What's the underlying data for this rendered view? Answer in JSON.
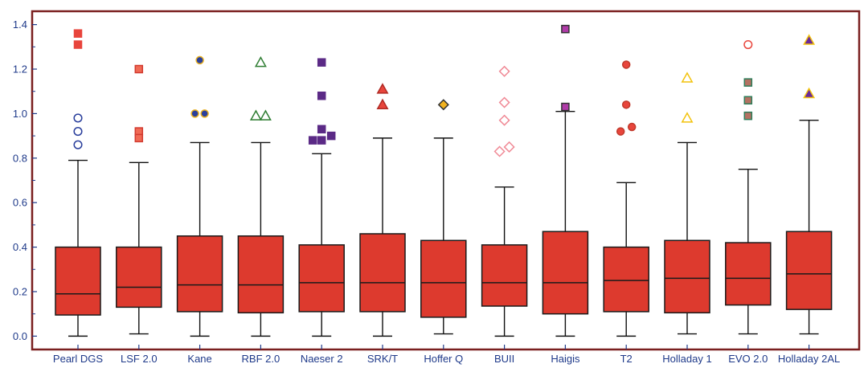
{
  "chart_data": {
    "type": "boxplot",
    "title": "",
    "xlabel": "",
    "ylabel": "",
    "ylim": [
      -0.06,
      1.46
    ],
    "yticks": [
      0.0,
      0.2,
      0.4,
      0.6,
      0.8,
      1.0,
      1.2,
      1.4
    ],
    "ytick_labels": [
      "0.0",
      "0.2",
      "0.4",
      "0.6",
      "0.8",
      "1.0",
      "1.2",
      "1.4"
    ],
    "grid": false,
    "legend": "none",
    "box_fill": "#dd3a2e",
    "frame_color": "#7a1f1f",
    "axis_text_color": "#1f3a8a",
    "categories": [
      "Pearl DGS",
      "LSF 2.0",
      "Kane",
      "RBF 2.0",
      "Naeser 2",
      "SRK/T",
      "Hoffer Q",
      "BUII",
      "Haigis",
      "T2",
      "Holladay 1",
      "EVO 2.0",
      "Holladay 2AL"
    ],
    "boxes": [
      {
        "category": "Pearl DGS",
        "whisker_low": 0.0,
        "q1": 0.095,
        "median": 0.19,
        "q3": 0.4,
        "whisker_high": 0.79,
        "outliers": [
          {
            "y": 1.36,
            "marker": "square",
            "fill": "#e8453c",
            "stroke": "#e8453c"
          },
          {
            "y": 1.31,
            "marker": "square",
            "fill": "#e8453c",
            "stroke": "#e8453c"
          },
          {
            "y": 0.98,
            "marker": "circle",
            "fill": "none",
            "stroke": "#2a3f9c"
          },
          {
            "y": 0.92,
            "marker": "circle",
            "fill": "none",
            "stroke": "#2a3f9c"
          },
          {
            "y": 0.86,
            "marker": "circle",
            "fill": "none",
            "stroke": "#2a3f9c"
          }
        ]
      },
      {
        "category": "LSF 2.0",
        "whisker_low": 0.01,
        "q1": 0.13,
        "median": 0.22,
        "q3": 0.4,
        "whisker_high": 0.78,
        "outliers": [
          {
            "y": 1.2,
            "marker": "square",
            "fill": "#f06a55",
            "stroke": "#d23a2f"
          },
          {
            "y": 0.92,
            "marker": "square",
            "fill": "#f06a55",
            "stroke": "#d23a2f"
          },
          {
            "y": 0.89,
            "marker": "square",
            "fill": "#f06a55",
            "stroke": "#d23a2f"
          }
        ]
      },
      {
        "category": "Kane",
        "whisker_low": 0.0,
        "q1": 0.11,
        "median": 0.23,
        "q3": 0.45,
        "whisker_high": 0.87,
        "outliers": [
          {
            "y": 1.24,
            "marker": "circle-filled",
            "fill": "#2a3f9c",
            "stroke": "#e8b020"
          },
          {
            "y": 1.0,
            "marker": "circle-filled",
            "fill": "#2a3f9c",
            "stroke": "#e8b020",
            "dx": -6
          },
          {
            "y": 1.0,
            "marker": "circle-filled",
            "fill": "#2a3f9c",
            "stroke": "#e8b020",
            "dx": 6
          }
        ]
      },
      {
        "category": "RBF 2.0",
        "whisker_low": 0.0,
        "q1": 0.105,
        "median": 0.23,
        "q3": 0.45,
        "whisker_high": 0.87,
        "outliers": [
          {
            "y": 1.23,
            "marker": "triangle",
            "fill": "none",
            "stroke": "#2e7d32"
          },
          {
            "y": 0.99,
            "marker": "triangle",
            "fill": "none",
            "stroke": "#2e7d32",
            "dx": -6
          },
          {
            "y": 0.99,
            "marker": "triangle",
            "fill": "none",
            "stroke": "#2e7d32",
            "dx": 6
          }
        ]
      },
      {
        "category": "Naeser 2",
        "whisker_low": 0.0,
        "q1": 0.11,
        "median": 0.24,
        "q3": 0.41,
        "whisker_high": 0.82,
        "outliers": [
          {
            "y": 1.23,
            "marker": "square",
            "fill": "#5b2a86",
            "stroke": "#5b2a86"
          },
          {
            "y": 1.08,
            "marker": "square",
            "fill": "#5b2a86",
            "stroke": "#5b2a86"
          },
          {
            "y": 0.93,
            "marker": "square",
            "fill": "#5b2a86",
            "stroke": "#5b2a86"
          },
          {
            "y": 0.9,
            "marker": "square",
            "fill": "#5b2a86",
            "stroke": "#5b2a86",
            "dx": 12
          },
          {
            "y": 0.88,
            "marker": "square",
            "fill": "#5b2a86",
            "stroke": "#5b2a86",
            "dx": -11
          },
          {
            "y": 0.88,
            "marker": "square",
            "fill": "#5b2a86",
            "stroke": "#5b2a86"
          }
        ]
      },
      {
        "category": "SRK/T",
        "whisker_low": 0.0,
        "q1": 0.11,
        "median": 0.24,
        "q3": 0.46,
        "whisker_high": 0.89,
        "outliers": [
          {
            "y": 1.11,
            "marker": "triangle-filled",
            "fill": "#e8453c",
            "stroke": "#b02a24"
          },
          {
            "y": 1.04,
            "marker": "triangle-filled",
            "fill": "#e8453c",
            "stroke": "#b02a24"
          }
        ]
      },
      {
        "category": "Hoffer Q",
        "whisker_low": 0.01,
        "q1": 0.085,
        "median": 0.24,
        "q3": 0.43,
        "whisker_high": 0.89,
        "outliers": [
          {
            "y": 1.04,
            "marker": "diamond",
            "fill": "#f2b320",
            "stroke": "#333333"
          }
        ]
      },
      {
        "category": "BUII",
        "whisker_low": 0.0,
        "q1": 0.135,
        "median": 0.24,
        "q3": 0.41,
        "whisker_high": 0.67,
        "outliers": [
          {
            "y": 1.19,
            "marker": "diamond",
            "fill": "none",
            "stroke": "#f08a96"
          },
          {
            "y": 1.05,
            "marker": "diamond",
            "fill": "none",
            "stroke": "#f08a96"
          },
          {
            "y": 0.97,
            "marker": "diamond",
            "fill": "none",
            "stroke": "#f08a96"
          },
          {
            "y": 0.85,
            "marker": "diamond",
            "fill": "none",
            "stroke": "#f08a96",
            "dx": 6
          },
          {
            "y": 0.83,
            "marker": "diamond",
            "fill": "none",
            "stroke": "#f08a96",
            "dx": -6
          }
        ]
      },
      {
        "category": "Haigis",
        "whisker_low": 0.0,
        "q1": 0.1,
        "median": 0.24,
        "q3": 0.47,
        "whisker_high": 1.01,
        "outliers": [
          {
            "y": 1.38,
            "marker": "square",
            "fill": "#b03aa8",
            "stroke": "#333333"
          },
          {
            "y": 1.03,
            "marker": "square",
            "fill": "#b03aa8",
            "stroke": "#333333"
          }
        ]
      },
      {
        "category": "T2",
        "whisker_low": 0.0,
        "q1": 0.11,
        "median": 0.25,
        "q3": 0.4,
        "whisker_high": 0.69,
        "outliers": [
          {
            "y": 1.22,
            "marker": "circle-filled",
            "fill": "#e8453c",
            "stroke": "#c0392b"
          },
          {
            "y": 1.04,
            "marker": "circle-filled",
            "fill": "#e8453c",
            "stroke": "#c0392b"
          },
          {
            "y": 0.94,
            "marker": "circle-filled",
            "fill": "#e8453c",
            "stroke": "#c0392b",
            "dx": 7
          },
          {
            "y": 0.92,
            "marker": "circle-filled",
            "fill": "#e8453c",
            "stroke": "#c0392b",
            "dx": -7
          }
        ]
      },
      {
        "category": "Holladay 1",
        "whisker_low": 0.01,
        "q1": 0.105,
        "median": 0.26,
        "q3": 0.43,
        "whisker_high": 0.87,
        "outliers": [
          {
            "y": 1.16,
            "marker": "triangle",
            "fill": "none",
            "stroke": "#f2c20c"
          },
          {
            "y": 0.98,
            "marker": "triangle",
            "fill": "none",
            "stroke": "#f2c20c"
          }
        ]
      },
      {
        "category": "EVO 2.0",
        "whisker_low": 0.01,
        "q1": 0.14,
        "median": 0.26,
        "q3": 0.42,
        "whisker_high": 0.75,
        "outliers": [
          {
            "y": 1.31,
            "marker": "circle",
            "fill": "none",
            "stroke": "#e8453c"
          },
          {
            "y": 1.14,
            "marker": "square",
            "fill": "#b47262",
            "stroke": "#2e7d5a"
          },
          {
            "y": 1.06,
            "marker": "square",
            "fill": "#b47262",
            "stroke": "#2e7d5a"
          },
          {
            "y": 0.99,
            "marker": "square",
            "fill": "#b47262",
            "stroke": "#2e7d5a"
          }
        ]
      },
      {
        "category": "Holladay 2AL",
        "whisker_low": 0.01,
        "q1": 0.12,
        "median": 0.28,
        "q3": 0.47,
        "whisker_high": 0.97,
        "outliers": [
          {
            "y": 1.33,
            "marker": "triangle-filled",
            "fill": "#6a2a9a",
            "stroke": "#f2c20c"
          },
          {
            "y": 1.09,
            "marker": "triangle-filled",
            "fill": "#6a2a9a",
            "stroke": "#f2c20c"
          }
        ]
      }
    ]
  }
}
